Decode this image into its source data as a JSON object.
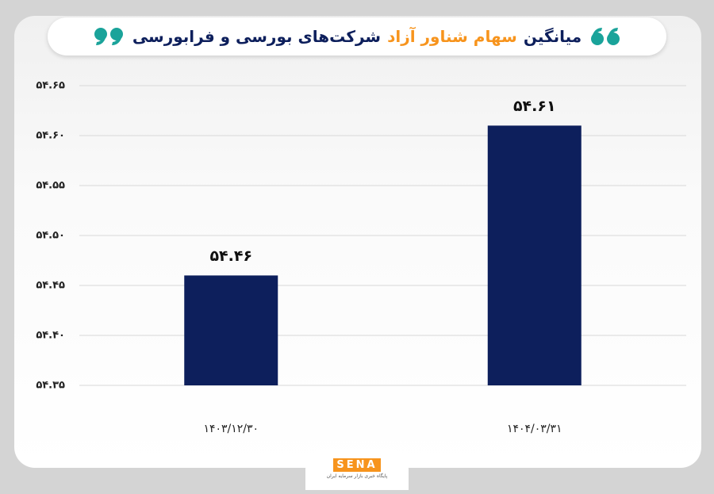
{
  "chart_data": {
    "type": "bar",
    "title_parts": [
      "میانگین",
      "سهام شناور آزاد",
      "شرکت‌های بورسی و فرابورسی"
    ],
    "title_colors": [
      "#0d1f5c",
      "#f7941d",
      "#0d1f5c"
    ],
    "categories": [
      "۱۴۰۳/۱۲/۳۰",
      "۱۴۰۴/۰۳/۳۱"
    ],
    "values": [
      54.46,
      54.61
    ],
    "value_labels": [
      "۵۴.۴۶",
      "۵۴.۶۱"
    ],
    "color": "#0d1f5c",
    "ylim": [
      54.35,
      54.65
    ],
    "yticks": [
      {
        "value": 54.35,
        "label": "۵۴.۳۵"
      },
      {
        "value": 54.4,
        "label": "۵۴.۴۰"
      },
      {
        "value": 54.45,
        "label": "۵۴.۴۵"
      },
      {
        "value": 54.5,
        "label": "۵۴.۵۰"
      },
      {
        "value": 54.55,
        "label": "۵۴.۵۵"
      },
      {
        "value": 54.6,
        "label": "۵۴.۶۰"
      },
      {
        "value": 54.65,
        "label": "۵۴.۶۵"
      }
    ],
    "grid": true
  },
  "logo": {
    "text": "SENA",
    "tagline": "پایگاه خبری بازار سرمایه ایران"
  }
}
